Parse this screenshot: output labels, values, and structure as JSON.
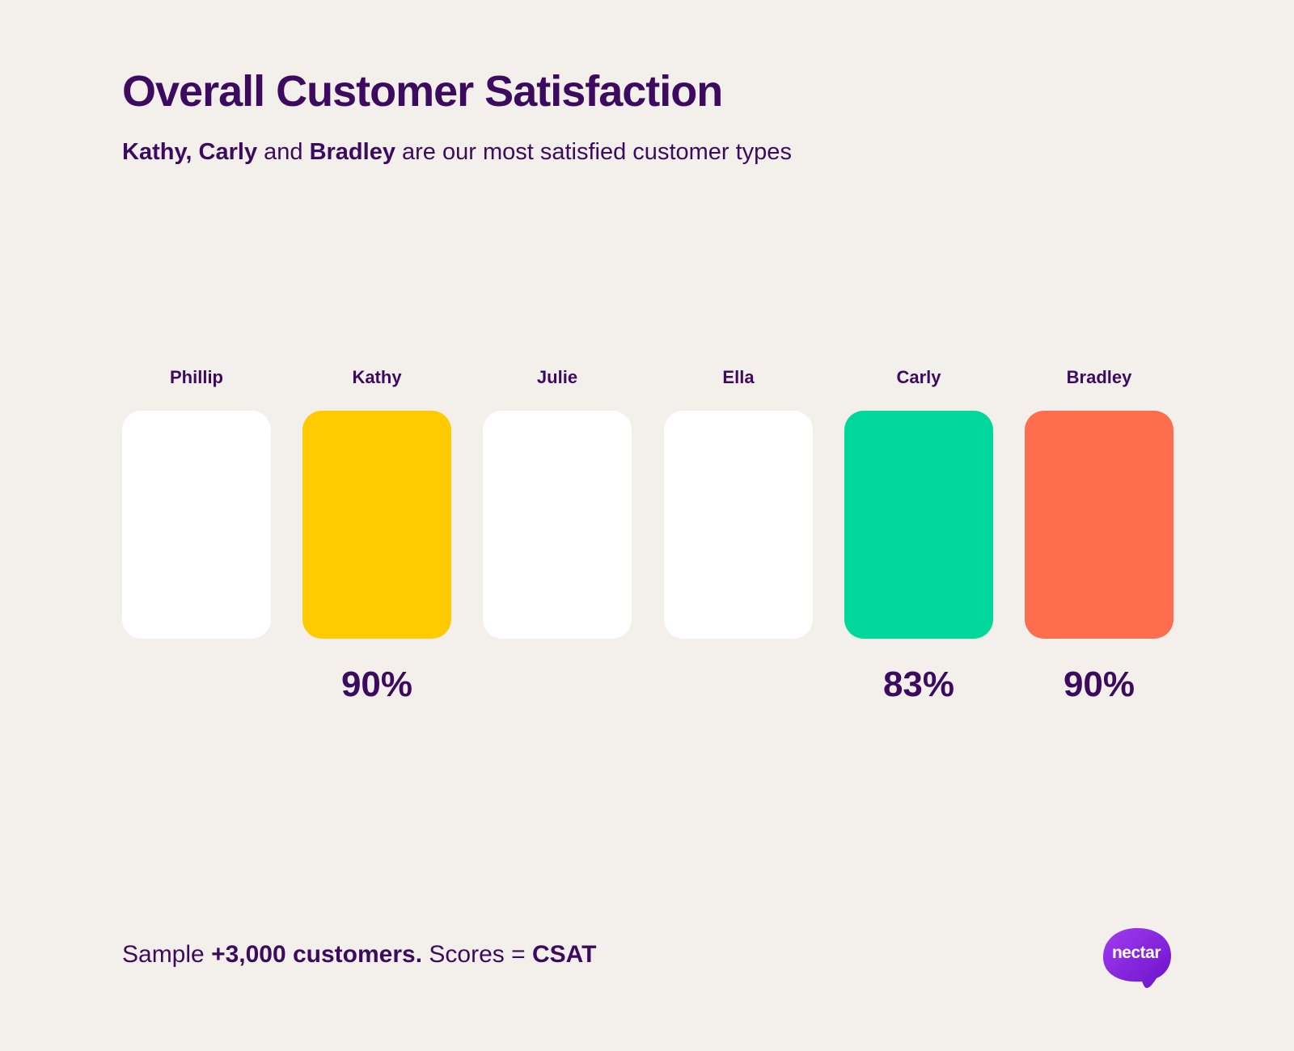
{
  "header": {
    "title": "Overall Customer Satisfaction",
    "subtitle": {
      "name1": "Kathy, Carly",
      "join": " and ",
      "name2": "Bradley",
      "rest": " are our most satisfied customer types"
    }
  },
  "cards": [
    {
      "name": "Phillip",
      "score": "",
      "color": "#ffffff"
    },
    {
      "name": "Kathy",
      "score": "90%",
      "color": "#ffcb00"
    },
    {
      "name": "Julie",
      "score": "",
      "color": "#ffffff"
    },
    {
      "name": "Ella",
      "score": "",
      "color": "#ffffff"
    },
    {
      "name": "Carly",
      "score": "83%",
      "color": "#00d89b"
    },
    {
      "name": "Bradley",
      "score": "90%",
      "color": "#ff6d4f"
    }
  ],
  "footer": {
    "prefix": "Sample ",
    "sample": "+3,000 customers.",
    "middle": " Scores = ",
    "metric": "CSAT"
  },
  "logo": {
    "text": "nectar",
    "icon": "nectar-logo-icon",
    "color": "#8a2be2"
  }
}
